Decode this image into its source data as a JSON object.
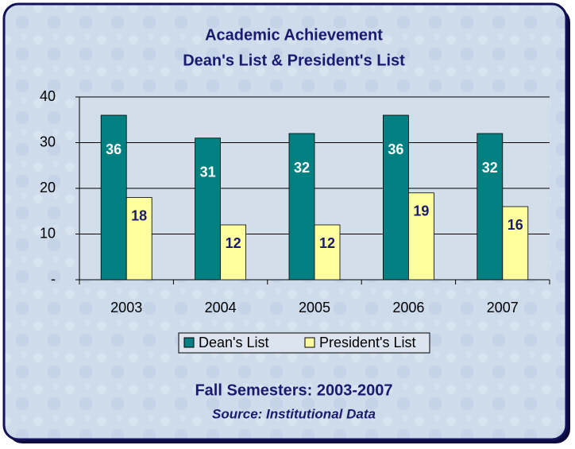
{
  "chart_data": {
    "type": "bar",
    "title_lines": [
      "Academic Achievement",
      "Dean's List & President's List"
    ],
    "categories": [
      "2003",
      "2004",
      "2005",
      "2006",
      "2007"
    ],
    "series": [
      {
        "name": "Dean's List",
        "color": "#008080",
        "label_color": "#ffffff",
        "values": [
          36,
          31,
          32,
          36,
          32
        ]
      },
      {
        "name": "President's List",
        "color": "#ffffa0",
        "label_color": "#1a1a6e",
        "values": [
          18,
          12,
          12,
          19,
          16
        ]
      }
    ],
    "ylim": [
      0,
      40
    ],
    "yticks": [
      {
        "value": 0,
        "label": "-"
      },
      10,
      20,
      30,
      40
    ],
    "grid": true,
    "annotations": [
      "Fall Semesters: 2003-2007",
      "Source: Institutional Data"
    ]
  }
}
